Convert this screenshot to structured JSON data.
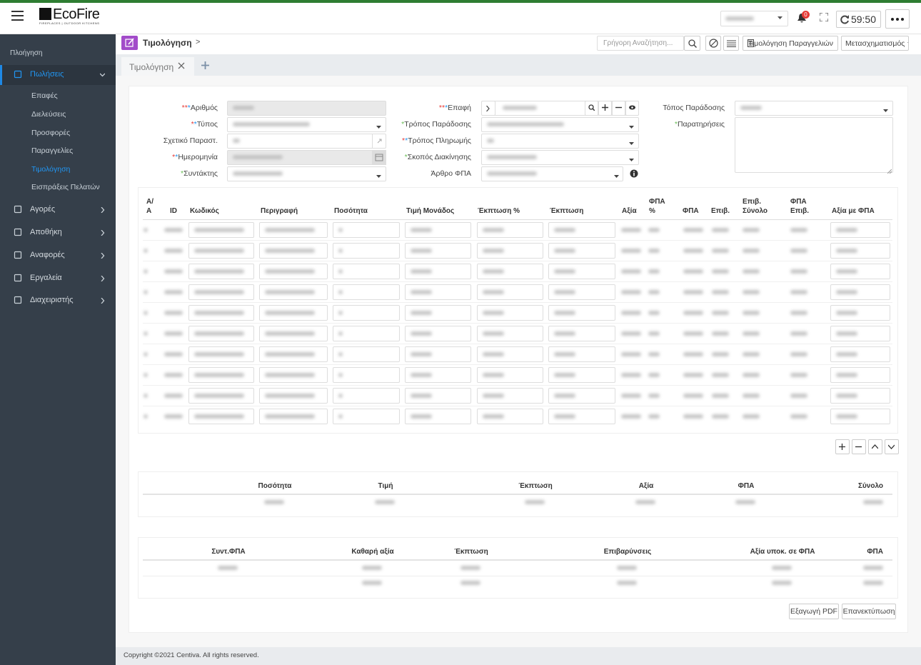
{
  "header": {
    "logo": "EcoFire",
    "logo_tagline": "FIREPLACES | OUTDOOR KITCHENS",
    "notification_count": "0",
    "session_timer": "59:50"
  },
  "sidebar": {
    "section": "Πλοήγηση",
    "items": [
      {
        "label": "Πωλήσεις",
        "children": [
          "Επαφές",
          "Διελεύσεις",
          "Προσφορές",
          "Παραγγελίες",
          "Τιμολόγηση",
          "Εισπράξεις Πελατών"
        ]
      },
      {
        "label": "Αγορές"
      },
      {
        "label": "Αποθήκη"
      },
      {
        "label": "Αναφορές"
      },
      {
        "label": "Εργαλεία"
      },
      {
        "label": "Διαχειριστής"
      }
    ]
  },
  "toolbar": {
    "title": "Τιμολόγηση",
    "separator": ">",
    "search_placeholder": "Γρήγορη Αναζήτηση...",
    "buttons": [
      "Τιμολόγηση Παραγγελιών",
      "Μετασχηματισμός"
    ]
  },
  "tabs": [
    "Τιμολόγηση"
  ],
  "form": {
    "columns": [
      [
        "***Αριθμός",
        "**Τύπος",
        "Σχετικό Παραστ.",
        "**Ημερομηνία",
        "*Συντάκτης"
      ],
      [
        "***Επαφή",
        "*Τρόπος Παράδοσης",
        "**Τρόπος Πληρωμής",
        "*Σκοπός Διακίνησης",
        "Άρθρο ΦΠΑ"
      ],
      [
        "Τόπος Παράδοσης",
        "*Παρατηρήσεις"
      ]
    ]
  },
  "items_table": {
    "columns": [
      "Α/Α",
      "ID",
      "Κωδικός",
      "Περιγραφή",
      "Ποσότητα",
      "Τιμή Μονάδος",
      "Έκπτωση %",
      "Έκπτωση",
      "Αξία",
      "ΦΠΑ %",
      "ΦΠΑ",
      "Επιβ.",
      "Επιβ. Σύνολο",
      "ΦΠΑ Επιβ.",
      "Αξία με ΦΠΑ"
    ]
  },
  "totals_table": {
    "columns": [
      "Ποσότητα",
      "Τιμή",
      "Έκπτωση",
      "Αξία",
      "ΦΠΑ",
      "Σύνολο"
    ]
  },
  "vat_table": {
    "columns": [
      "Συντ.ΦΠΑ",
      "Καθαρή αξία",
      "Έκπτωση",
      "Επιβαρύνσεις",
      "Αξία υποκ. σε ΦΠΑ",
      "ΦΠΑ"
    ]
  },
  "actions": [
    "Εξαγωγή PDF",
    "Επανεκτύπωση"
  ],
  "footer": "Copyright ©2021 Centiva. All rights reserved."
}
